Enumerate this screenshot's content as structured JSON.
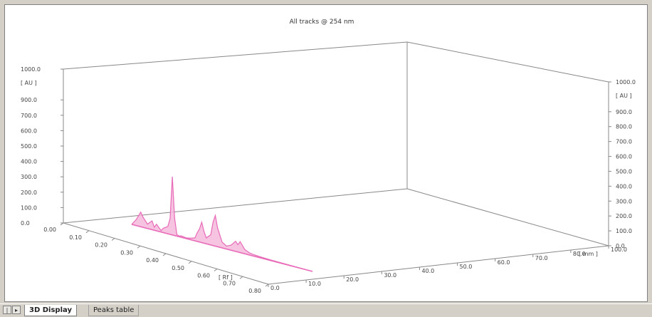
{
  "window": {
    "tabs": [
      {
        "label": "3D Display",
        "active": true
      },
      {
        "label": "Peaks table",
        "active": false
      }
    ]
  },
  "chart_data": {
    "type": "line",
    "title": "All tracks @ 254 nm",
    "left_axis": {
      "label": "[ AU ]",
      "ticks": [
        "1000.0",
        "900.0",
        "700.0",
        "600.0",
        "500.0",
        "400.0",
        "300.0",
        "200.0",
        "100.0",
        "0.0"
      ]
    },
    "right_axis": {
      "label": "[ AU ]",
      "ticks": [
        "1000.0",
        "900.0",
        "800.0",
        "700.0",
        "600.0",
        "500.0",
        "400.0",
        "300.0",
        "200.0",
        "100.0",
        "0.0"
      ]
    },
    "rf_axis": {
      "label": "[ Rf ]",
      "ticks": [
        "0.00",
        "0.10",
        "0.20",
        "0.30",
        "0.40",
        "0.50",
        "0.60",
        "0.70",
        "0.80"
      ]
    },
    "mm_axis": {
      "label": "[ mm ]",
      "ticks": [
        "0.0",
        "10.0",
        "20.0",
        "30.0",
        "40.0",
        "50.0",
        "60.0",
        "70.0",
        "80.0",
        "100.0"
      ]
    },
    "ylim": [
      0,
      1000
    ],
    "xlim": [
      0,
      0.8
    ],
    "series": [
      {
        "color": "#e86ab8",
        "fill": "#f5b8dc",
        "x": [
          0.0,
          0.02,
          0.04,
          0.05,
          0.07,
          0.09,
          0.1,
          0.11,
          0.13,
          0.14,
          0.16,
          0.17,
          0.18,
          0.19,
          0.2,
          0.21,
          0.22,
          0.24,
          0.26,
          0.28,
          0.29,
          0.3,
          0.31,
          0.32,
          0.33,
          0.35,
          0.36,
          0.37,
          0.38,
          0.4,
          0.42,
          0.44,
          0.46,
          0.47,
          0.48,
          0.5,
          0.52,
          0.54,
          0.56,
          0.58,
          0.6,
          0.62,
          0.65,
          0.7,
          0.75,
          0.8
        ],
        "y": [
          0,
          40,
          100,
          70,
          30,
          60,
          20,
          45,
          10,
          30,
          50,
          110,
          400,
          120,
          10,
          5,
          10,
          5,
          10,
          20,
          60,
          90,
          140,
          80,
          40,
          70,
          160,
          210,
          130,
          40,
          20,
          35,
          70,
          50,
          75,
          30,
          15,
          10,
          8,
          6,
          5,
          4,
          3,
          2,
          1,
          0
        ]
      }
    ],
    "grid": false,
    "legend": "none"
  }
}
